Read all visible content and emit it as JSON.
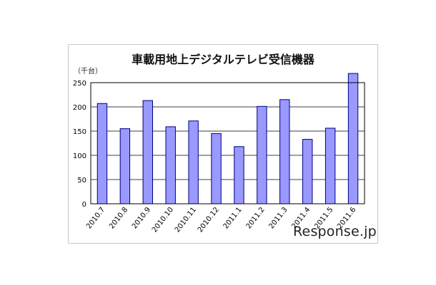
{
  "chart_data": {
    "type": "bar",
    "title": "車載用地上デジタルテレビ受信機器",
    "unit_label": "（千台）",
    "categories": [
      "2010.7",
      "2010.8",
      "2010.9",
      "2010.10",
      "2010.11",
      "2010.12",
      "2011.1",
      "2011.2",
      "2011.3",
      "2011.4",
      "2011.5",
      "2011.6"
    ],
    "series": [
      {
        "values": [
          207,
          155,
          213,
          159,
          171,
          145,
          118,
          201,
          215,
          133,
          156,
          269
        ]
      }
    ],
    "ylim": [
      0,
      250
    ],
    "yticks": [
      0,
      50,
      100,
      150,
      200,
      250
    ],
    "grid": true,
    "bar_color": "#9999ff",
    "bar_edge_color": "#000080"
  },
  "watermark": "Response.jp"
}
